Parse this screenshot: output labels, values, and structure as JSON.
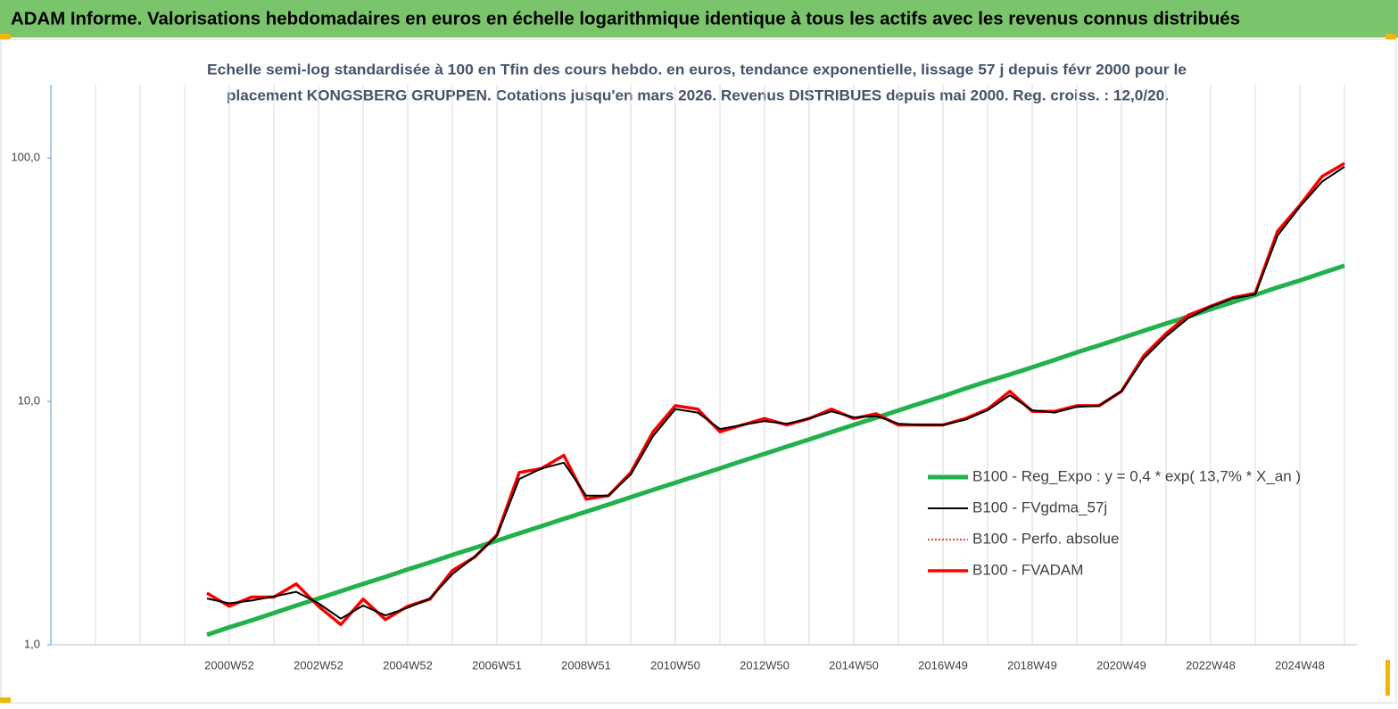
{
  "chart_data": {
    "type": "line",
    "title": "ADAM Informe. Valorisations hebdomadaires en euros en échelle logarithmique identique à tous les actifs avec les revenus connus distribués",
    "subtitle": [
      "Echelle semi-log standardisée à 100 en Tfin des cours hebdo. en euros, tendance exponentielle, lissage 57 j depuis févr 2000 pour le",
      "placement KONGSBERG GRUPPEN. Cotations jusqu'en mars 2026. Revenus DISTRIBUES depuis mai 2000. Reg. croiss. : 12,0/20."
    ],
    "log_scale": true,
    "xgrid": true,
    "legend": "right",
    "ylim": [
      1,
      200
    ],
    "yticks": [
      {
        "value": 1,
        "label": "1,0"
      },
      {
        "value": 10,
        "label": "10,0"
      },
      {
        "value": 100,
        "label": "100,0"
      }
    ],
    "categories": [
      null,
      null,
      null,
      null,
      null,
      null,
      null,
      null,
      "2000W52",
      null,
      null,
      null,
      "2002W52",
      null,
      null,
      null,
      "2004W52",
      null,
      null,
      null,
      "2006W51",
      null,
      null,
      null,
      "2008W51",
      null,
      null,
      null,
      "2010W50",
      null,
      null,
      null,
      "2012W50",
      null,
      null,
      null,
      "2014W50",
      null,
      null,
      null,
      "2016W49",
      null,
      null,
      null,
      "2018W49",
      null,
      null,
      null,
      "2020W49",
      null,
      null,
      null,
      "2022W48",
      null,
      null,
      null,
      "2024W48",
      null,
      null
    ],
    "series": [
      {
        "name": "B100 - Reg_Expo : y = 0,4 * exp( 13,7% *  X_an )",
        "color": "#22b14c",
        "line_width": 5,
        "line_style": "solid",
        "values": [
          null,
          null,
          null,
          null,
          null,
          null,
          null,
          1.1,
          1.18,
          1.26,
          1.35,
          1.45,
          1.55,
          1.66,
          1.78,
          1.9,
          2.04,
          2.18,
          2.34,
          2.5,
          2.68,
          2.87,
          3.07,
          3.29,
          3.52,
          3.77,
          4.04,
          4.33,
          4.63,
          4.96,
          5.31,
          5.69,
          6.09,
          6.52,
          6.98,
          7.48,
          8.01,
          8.57,
          9.18,
          9.83,
          10.5,
          11.3,
          12.1,
          12.9,
          13.8,
          14.8,
          15.9,
          17.0,
          18.2,
          19.5,
          20.9,
          22.3,
          23.9,
          25.6,
          27.4,
          29.4,
          31.4,
          33.7,
          36.1
        ]
      },
      {
        "name": "B100 - FVgdma_57j",
        "color": "#000000",
        "line_width": 2,
        "line_style": "solid",
        "values": [
          null,
          null,
          null,
          null,
          null,
          null,
          null,
          1.55,
          1.48,
          1.52,
          1.58,
          1.65,
          1.48,
          1.28,
          1.45,
          1.32,
          1.42,
          1.55,
          1.95,
          2.3,
          2.8,
          4.8,
          5.3,
          5.6,
          4.1,
          4.1,
          5.0,
          7.2,
          9.3,
          9.0,
          7.7,
          8.0,
          8.3,
          8.1,
          8.5,
          9.1,
          8.6,
          8.7,
          8.1,
          8.0,
          8.0,
          8.4,
          9.2,
          10.6,
          9.2,
          9.0,
          9.5,
          9.6,
          11.0,
          15.0,
          18.5,
          22.0,
          24.5,
          26.5,
          27.5,
          48,
          63,
          80,
          92
        ]
      },
      {
        "name": "B100 - Perfo. absolue",
        "color": "#e00000",
        "line_width": 1.5,
        "line_style": "dotted",
        "values": [
          null,
          null,
          null,
          null,
          null,
          null,
          null,
          1.63,
          1.44,
          1.57,
          1.57,
          1.78,
          1.44,
          1.21,
          1.54,
          1.27,
          1.44,
          1.54,
          2.02,
          2.29,
          2.83,
          5.1,
          5.3,
          6.0,
          3.97,
          4.1,
          5.1,
          7.5,
          9.6,
          9.3,
          7.5,
          8.0,
          8.5,
          8.0,
          8.5,
          9.3,
          8.5,
          8.9,
          8.0,
          8.0,
          8.0,
          8.5,
          9.3,
          11.0,
          9.1,
          9.1,
          9.6,
          9.6,
          11.0,
          15.4,
          19.0,
          22.6,
          24.6,
          26.7,
          27.8,
          50,
          64,
          84,
          95
        ]
      },
      {
        "name": "B100 - FVADAM",
        "color": "#ff0000",
        "line_width": 3.5,
        "line_style": "solid",
        "values": [
          null,
          null,
          null,
          null,
          null,
          null,
          null,
          1.63,
          1.44,
          1.57,
          1.57,
          1.78,
          1.44,
          1.21,
          1.54,
          1.27,
          1.44,
          1.54,
          2.02,
          2.29,
          2.83,
          5.1,
          5.3,
          6.0,
          3.97,
          4.1,
          5.1,
          7.5,
          9.6,
          9.3,
          7.5,
          8.0,
          8.5,
          8.0,
          8.5,
          9.3,
          8.5,
          8.9,
          8.0,
          8.0,
          8.0,
          8.5,
          9.3,
          11.0,
          9.1,
          9.1,
          9.6,
          9.6,
          11.0,
          15.4,
          19.0,
          22.6,
          24.6,
          26.7,
          27.8,
          50,
          64,
          84,
          95
        ]
      }
    ]
  }
}
